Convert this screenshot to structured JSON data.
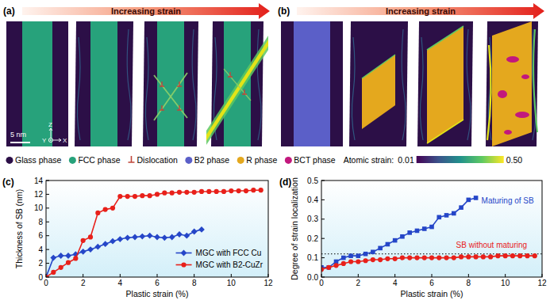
{
  "figure_panels": [
    {
      "label": "(a)",
      "banner": "Increasing strain",
      "scale_bar": "5 nm",
      "axis_labels": [
        "Z",
        "Y",
        "X"
      ]
    },
    {
      "label": "(b)",
      "banner": "Increasing strain"
    }
  ],
  "phase_legend": [
    {
      "label": "Glass phase",
      "color": "#2c0f47",
      "marker": "circle"
    },
    {
      "label": "FCC phase",
      "color": "#27a27b",
      "marker": "circle"
    },
    {
      "label": "Dislocation",
      "color": "#c0463a",
      "marker": "dislocation"
    },
    {
      "label": "B2 phase",
      "color": "#5b5fc8",
      "marker": "circle"
    },
    {
      "label": "R phase",
      "color": "#e4a81e",
      "marker": "circle"
    },
    {
      "label": "BCT phase",
      "color": "#c2187d",
      "marker": "circle"
    }
  ],
  "strain_colorbar": {
    "label": "Atomic strain:",
    "range": [
      0.01,
      0.5
    ],
    "ticks": [
      0.01,
      {
        "value": 0.5,
        "label": "0.50"
      }
    ]
  },
  "chart_data": [
    {
      "type": "line",
      "title": "(c)",
      "x_label": "Plastic strain (%)",
      "y_label": "Thickness of SB (nm)",
      "xlim": [
        0,
        12
      ],
      "xticks": [
        0,
        2,
        4,
        6,
        8,
        10,
        12
      ],
      "ylim": [
        0,
        14
      ],
      "yticks": [
        0,
        2,
        4,
        6,
        8,
        10,
        12,
        14
      ],
      "legend": "lower right",
      "series": [
        {
          "name": "MGC with FCC Cu",
          "color": "#2546c8",
          "marker": "diamond",
          "x": [
            0,
            0.4,
            0.8,
            1.2,
            1.6,
            2,
            2.4,
            2.8,
            3.2,
            3.6,
            4,
            4.4,
            4.8,
            5.2,
            5.6,
            6,
            6.4,
            6.8,
            7.2,
            7.6,
            8,
            8.4
          ],
          "values": [
            0,
            2.8,
            3.1,
            3.1,
            3.3,
            3.7,
            4.0,
            4.4,
            4.8,
            5.2,
            5.5,
            5.7,
            5.8,
            5.9,
            6.0,
            5.8,
            5.7,
            5.8,
            6.2,
            6.0,
            6.6,
            6.9
          ]
        },
        {
          "name": "MGC with B2-CuZr",
          "color": "#e8201a",
          "marker": "circle",
          "x": [
            0,
            0.4,
            0.8,
            1.2,
            1.6,
            2,
            2.4,
            2.8,
            3.2,
            3.6,
            4,
            4.4,
            4.8,
            5.2,
            5.6,
            6,
            6.4,
            6.8,
            7.2,
            7.6,
            8,
            8.4,
            8.8,
            9.2,
            9.6,
            10,
            10.4,
            10.8,
            11.2,
            11.6
          ],
          "values": [
            0,
            0.7,
            1.4,
            2.1,
            2.7,
            5.3,
            5.8,
            9.3,
            9.8,
            10.0,
            11.7,
            11.7,
            11.7,
            11.8,
            11.8,
            12.0,
            12.2,
            12.2,
            12.3,
            12.3,
            12.3,
            12.4,
            12.4,
            12.4,
            12.4,
            12.5,
            12.5,
            12.5,
            12.6,
            12.6
          ]
        }
      ]
    },
    {
      "type": "line",
      "title": "(d)",
      "x_label": "Plastic strain (%)",
      "y_label": "Degree of strain localization",
      "xlim": [
        0,
        12
      ],
      "xticks": [
        0,
        2,
        4,
        6,
        8,
        10,
        12
      ],
      "ylim": [
        0,
        0.5
      ],
      "yticks": [
        {
          "value": 0,
          "label": "0.0"
        },
        0.1,
        0.2,
        0.3,
        0.4,
        0.5
      ],
      "reference_line": 0.12,
      "annotations": [
        {
          "text": "Maturing of SB",
          "color": "#2546c8"
        },
        {
          "text": "SB without maturing",
          "color": "#e8201a"
        }
      ],
      "series": [
        {
          "name": "MGC with FCC Cu",
          "color": "#2546c8",
          "marker": "square",
          "x": [
            0,
            0.4,
            0.8,
            1.2,
            1.6,
            2,
            2.4,
            2.8,
            3.2,
            3.6,
            4,
            4.4,
            4.8,
            5.2,
            5.6,
            6,
            6.4,
            6.8,
            7.2,
            7.6,
            8,
            8.4
          ],
          "values": [
            0.05,
            0.05,
            0.08,
            0.1,
            0.11,
            0.11,
            0.12,
            0.13,
            0.15,
            0.17,
            0.19,
            0.21,
            0.23,
            0.24,
            0.25,
            0.26,
            0.31,
            0.32,
            0.33,
            0.36,
            0.4,
            0.41
          ]
        },
        {
          "name": "MGC with B2-CuZr",
          "color": "#e8201a",
          "marker": "circle",
          "x": [
            0,
            0.4,
            0.8,
            1.2,
            1.6,
            2,
            2.4,
            2.8,
            3.2,
            3.6,
            4,
            4.4,
            4.8,
            5.2,
            5.6,
            6,
            6.4,
            6.8,
            7.2,
            7.6,
            8,
            8.4,
            8.8,
            9.2,
            9.6,
            10,
            10.4,
            10.8,
            11.2,
            11.6
          ],
          "values": [
            0.04,
            0.05,
            0.06,
            0.07,
            0.08,
            0.08,
            0.085,
            0.09,
            0.09,
            0.095,
            0.095,
            0.1,
            0.1,
            0.1,
            0.1,
            0.1,
            0.1,
            0.1,
            0.1,
            0.105,
            0.105,
            0.105,
            0.105,
            0.105,
            0.11,
            0.11,
            0.11,
            0.11,
            0.11,
            0.11
          ]
        }
      ]
    }
  ]
}
